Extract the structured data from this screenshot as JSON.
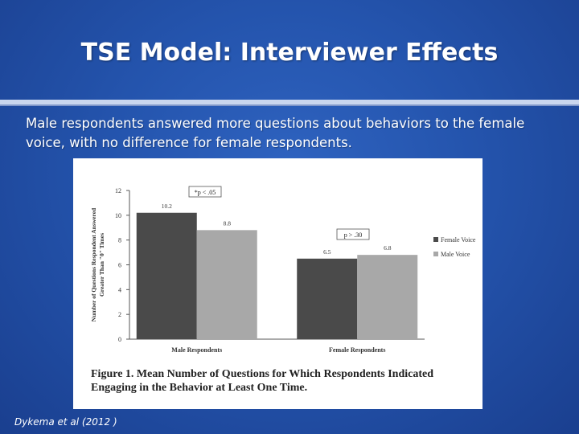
{
  "slide": {
    "title": "TSE Model: Interviewer Effects",
    "subtitle": "Male respondents answered more questions about behaviors to the female voice, with no difference for female respondents.",
    "citation": "Dykema et al (2012 )"
  },
  "chart_data": {
    "type": "bar",
    "ylabel": "Number of Questions Respondent Answered Greater Than \"0\" Times",
    "ylim": [
      0,
      12
    ],
    "yticks": [
      0,
      2,
      4,
      6,
      8,
      10,
      12
    ],
    "categories": [
      "Male Respondents",
      "Female Respondents"
    ],
    "series": [
      {
        "name": "Female Voice",
        "values": [
          10.2,
          6.5
        ],
        "color": "#4a4a4a"
      },
      {
        "name": "Male Voice",
        "values": [
          8.8,
          6.8
        ],
        "color": "#a8a8a8"
      }
    ],
    "data_labels": [
      "10.2",
      "8.8",
      "6.5",
      "6.8"
    ],
    "annotations": [
      "*p < .05",
      "p > .30"
    ],
    "caption": "Figure 1.  Mean Number of Questions for Which Respondents Indicated Engaging in the Behavior at Least One Time.",
    "legend_position": "right"
  }
}
